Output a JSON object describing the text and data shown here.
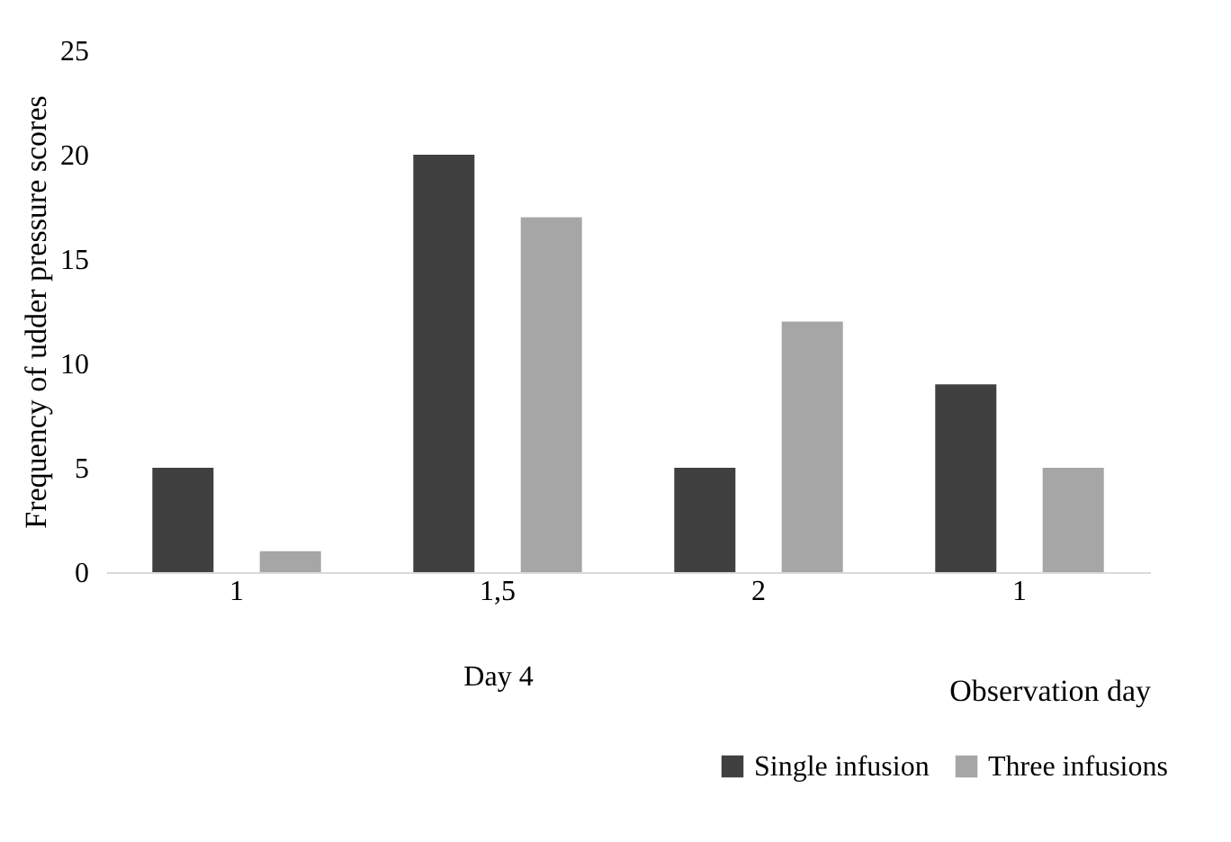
{
  "chart_data": {
    "type": "bar",
    "categories": [
      "1",
      "1,5",
      "2",
      "1"
    ],
    "series": [
      {
        "name": "Single infusion",
        "color": "#404040",
        "values": [
          5,
          20,
          5,
          9
        ]
      },
      {
        "name": "Three infusions",
        "color": "#a6a6a6",
        "values": [
          1,
          17,
          12,
          5
        ]
      }
    ],
    "xlabel": "Observation day",
    "ylabel": "Frequency of udder pressure scores",
    "ylim": [
      0,
      25
    ],
    "yticks": [
      0,
      5,
      10,
      15,
      20,
      25
    ],
    "grid": false,
    "legend": "bottom right",
    "annotations": [
      "Day 4"
    ]
  }
}
